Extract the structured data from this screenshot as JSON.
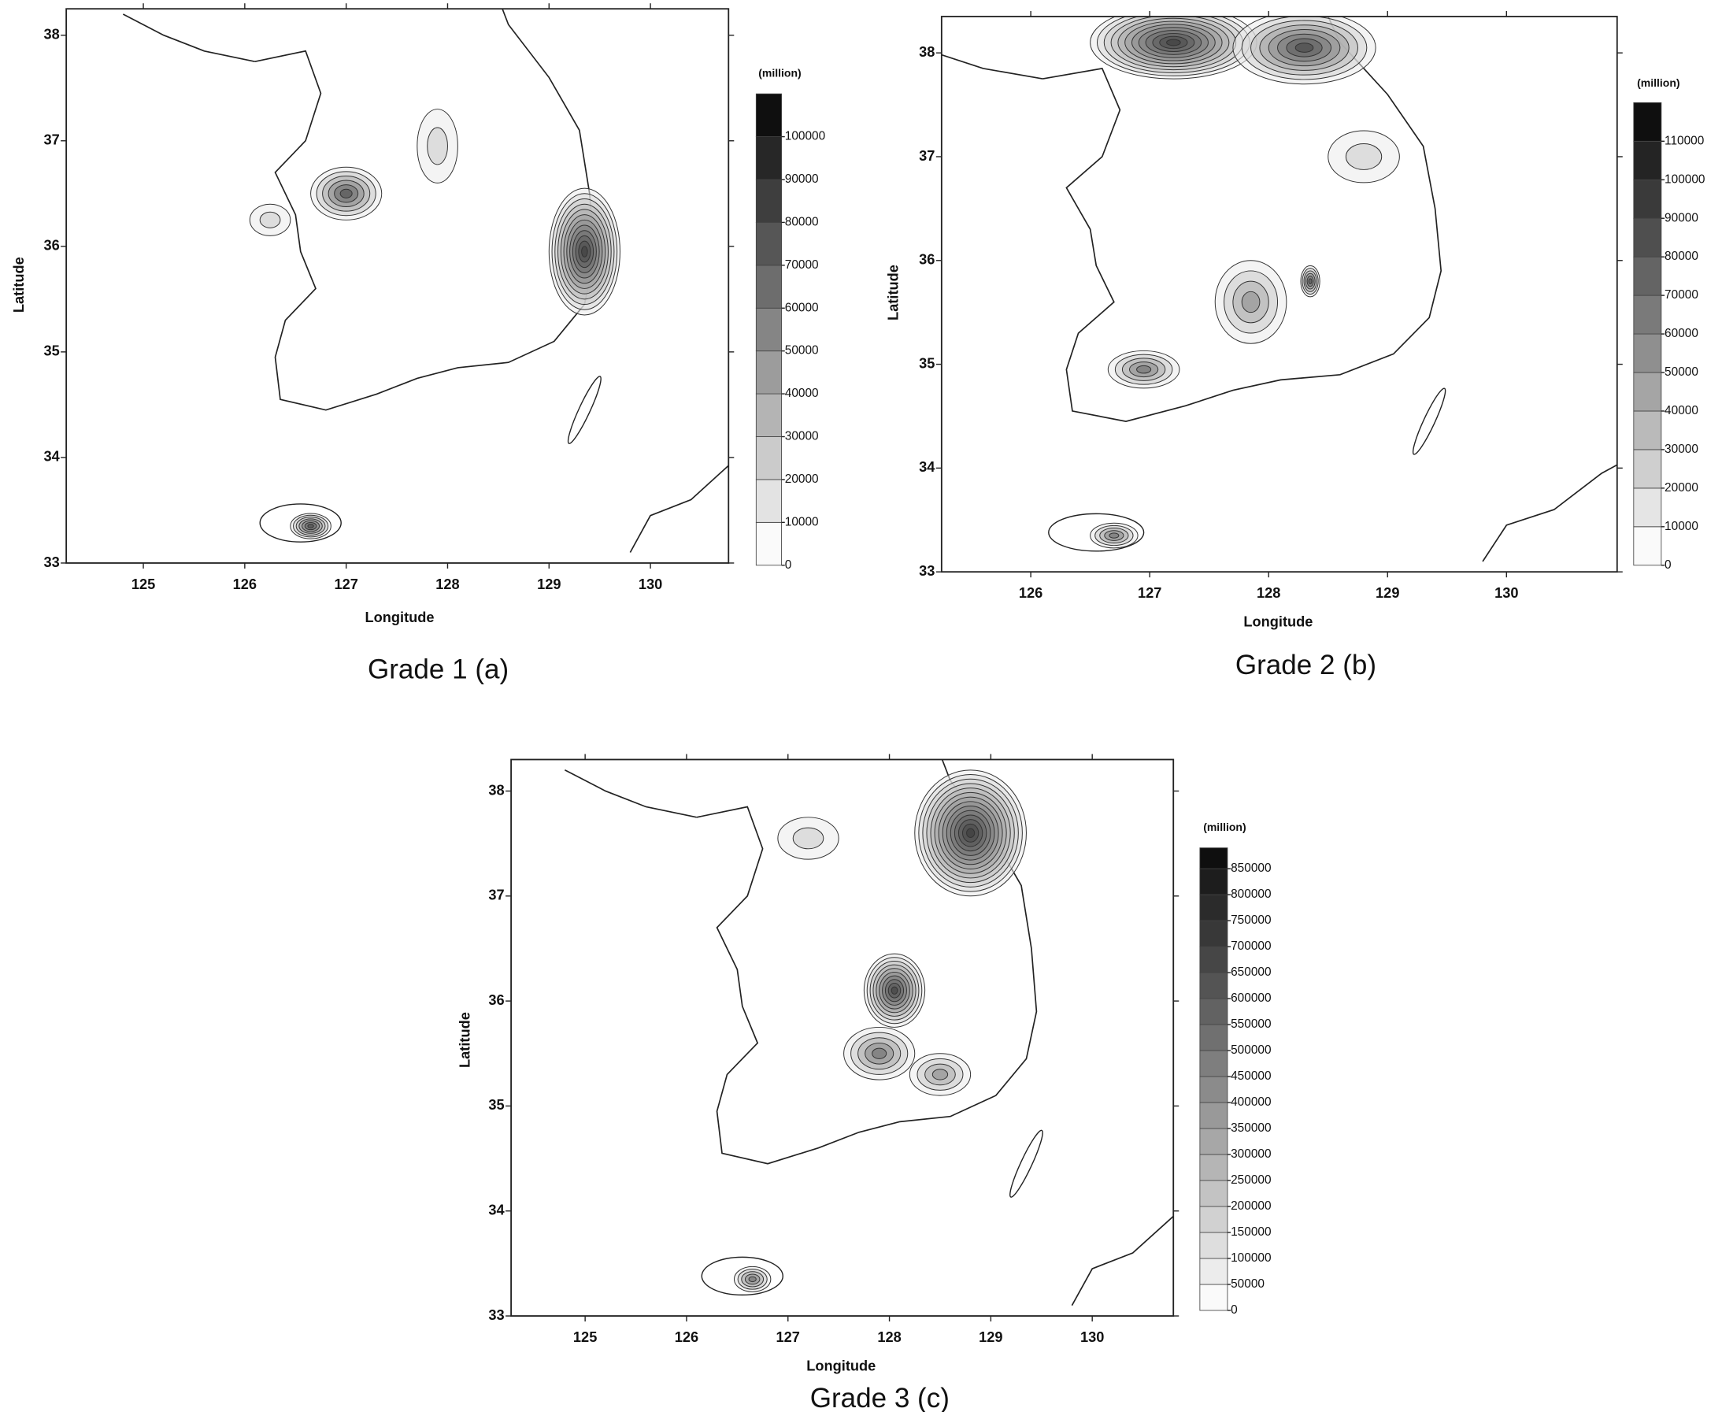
{
  "panels": [
    {
      "caption": "Grade 1 (a)",
      "x_label": "Longitude",
      "y_label": "Latitude",
      "legend_unit": "(million)",
      "xlim": [
        124.24,
        130.77
      ],
      "xticks": [
        125,
        126,
        127,
        128,
        129,
        130
      ],
      "ylim": [
        33,
        38.25
      ],
      "yticks": [
        33,
        34,
        35,
        36,
        37,
        38
      ],
      "legend_lim": [
        0,
        110000
      ],
      "legend_levels": [
        0,
        10000,
        20000,
        30000,
        40000,
        50000,
        60000,
        70000,
        80000,
        90000,
        100000
      ]
    },
    {
      "caption": "Grade 2 (b)",
      "x_label": "Longitude",
      "y_label": "Latitude",
      "legend_unit": "(million)",
      "xlim": [
        125.25,
        130.93
      ],
      "xticks": [
        126,
        127,
        128,
        129,
        130
      ],
      "ylim": [
        33,
        38.35
      ],
      "yticks": [
        33,
        34,
        35,
        36,
        37,
        38
      ],
      "legend_lim": [
        0,
        120000
      ],
      "legend_levels": [
        0,
        10000,
        20000,
        30000,
        40000,
        50000,
        60000,
        70000,
        80000,
        90000,
        100000,
        110000
      ]
    },
    {
      "caption": "Grade 3 (c)",
      "x_label": "Longitude",
      "y_label": "Latitude",
      "legend_unit": "(million)",
      "xlim": [
        124.27,
        130.8
      ],
      "xticks": [
        125,
        126,
        127,
        128,
        129,
        130
      ],
      "ylim": [
        33,
        38.3
      ],
      "yticks": [
        33,
        34,
        35,
        36,
        37,
        38
      ],
      "legend_lim": [
        0,
        890000
      ],
      "legend_levels": [
        0,
        50000,
        100000,
        150000,
        200000,
        250000,
        300000,
        350000,
        400000,
        450000,
        500000,
        550000,
        600000,
        650000,
        700000,
        750000,
        800000,
        850000
      ]
    }
  ]
}
